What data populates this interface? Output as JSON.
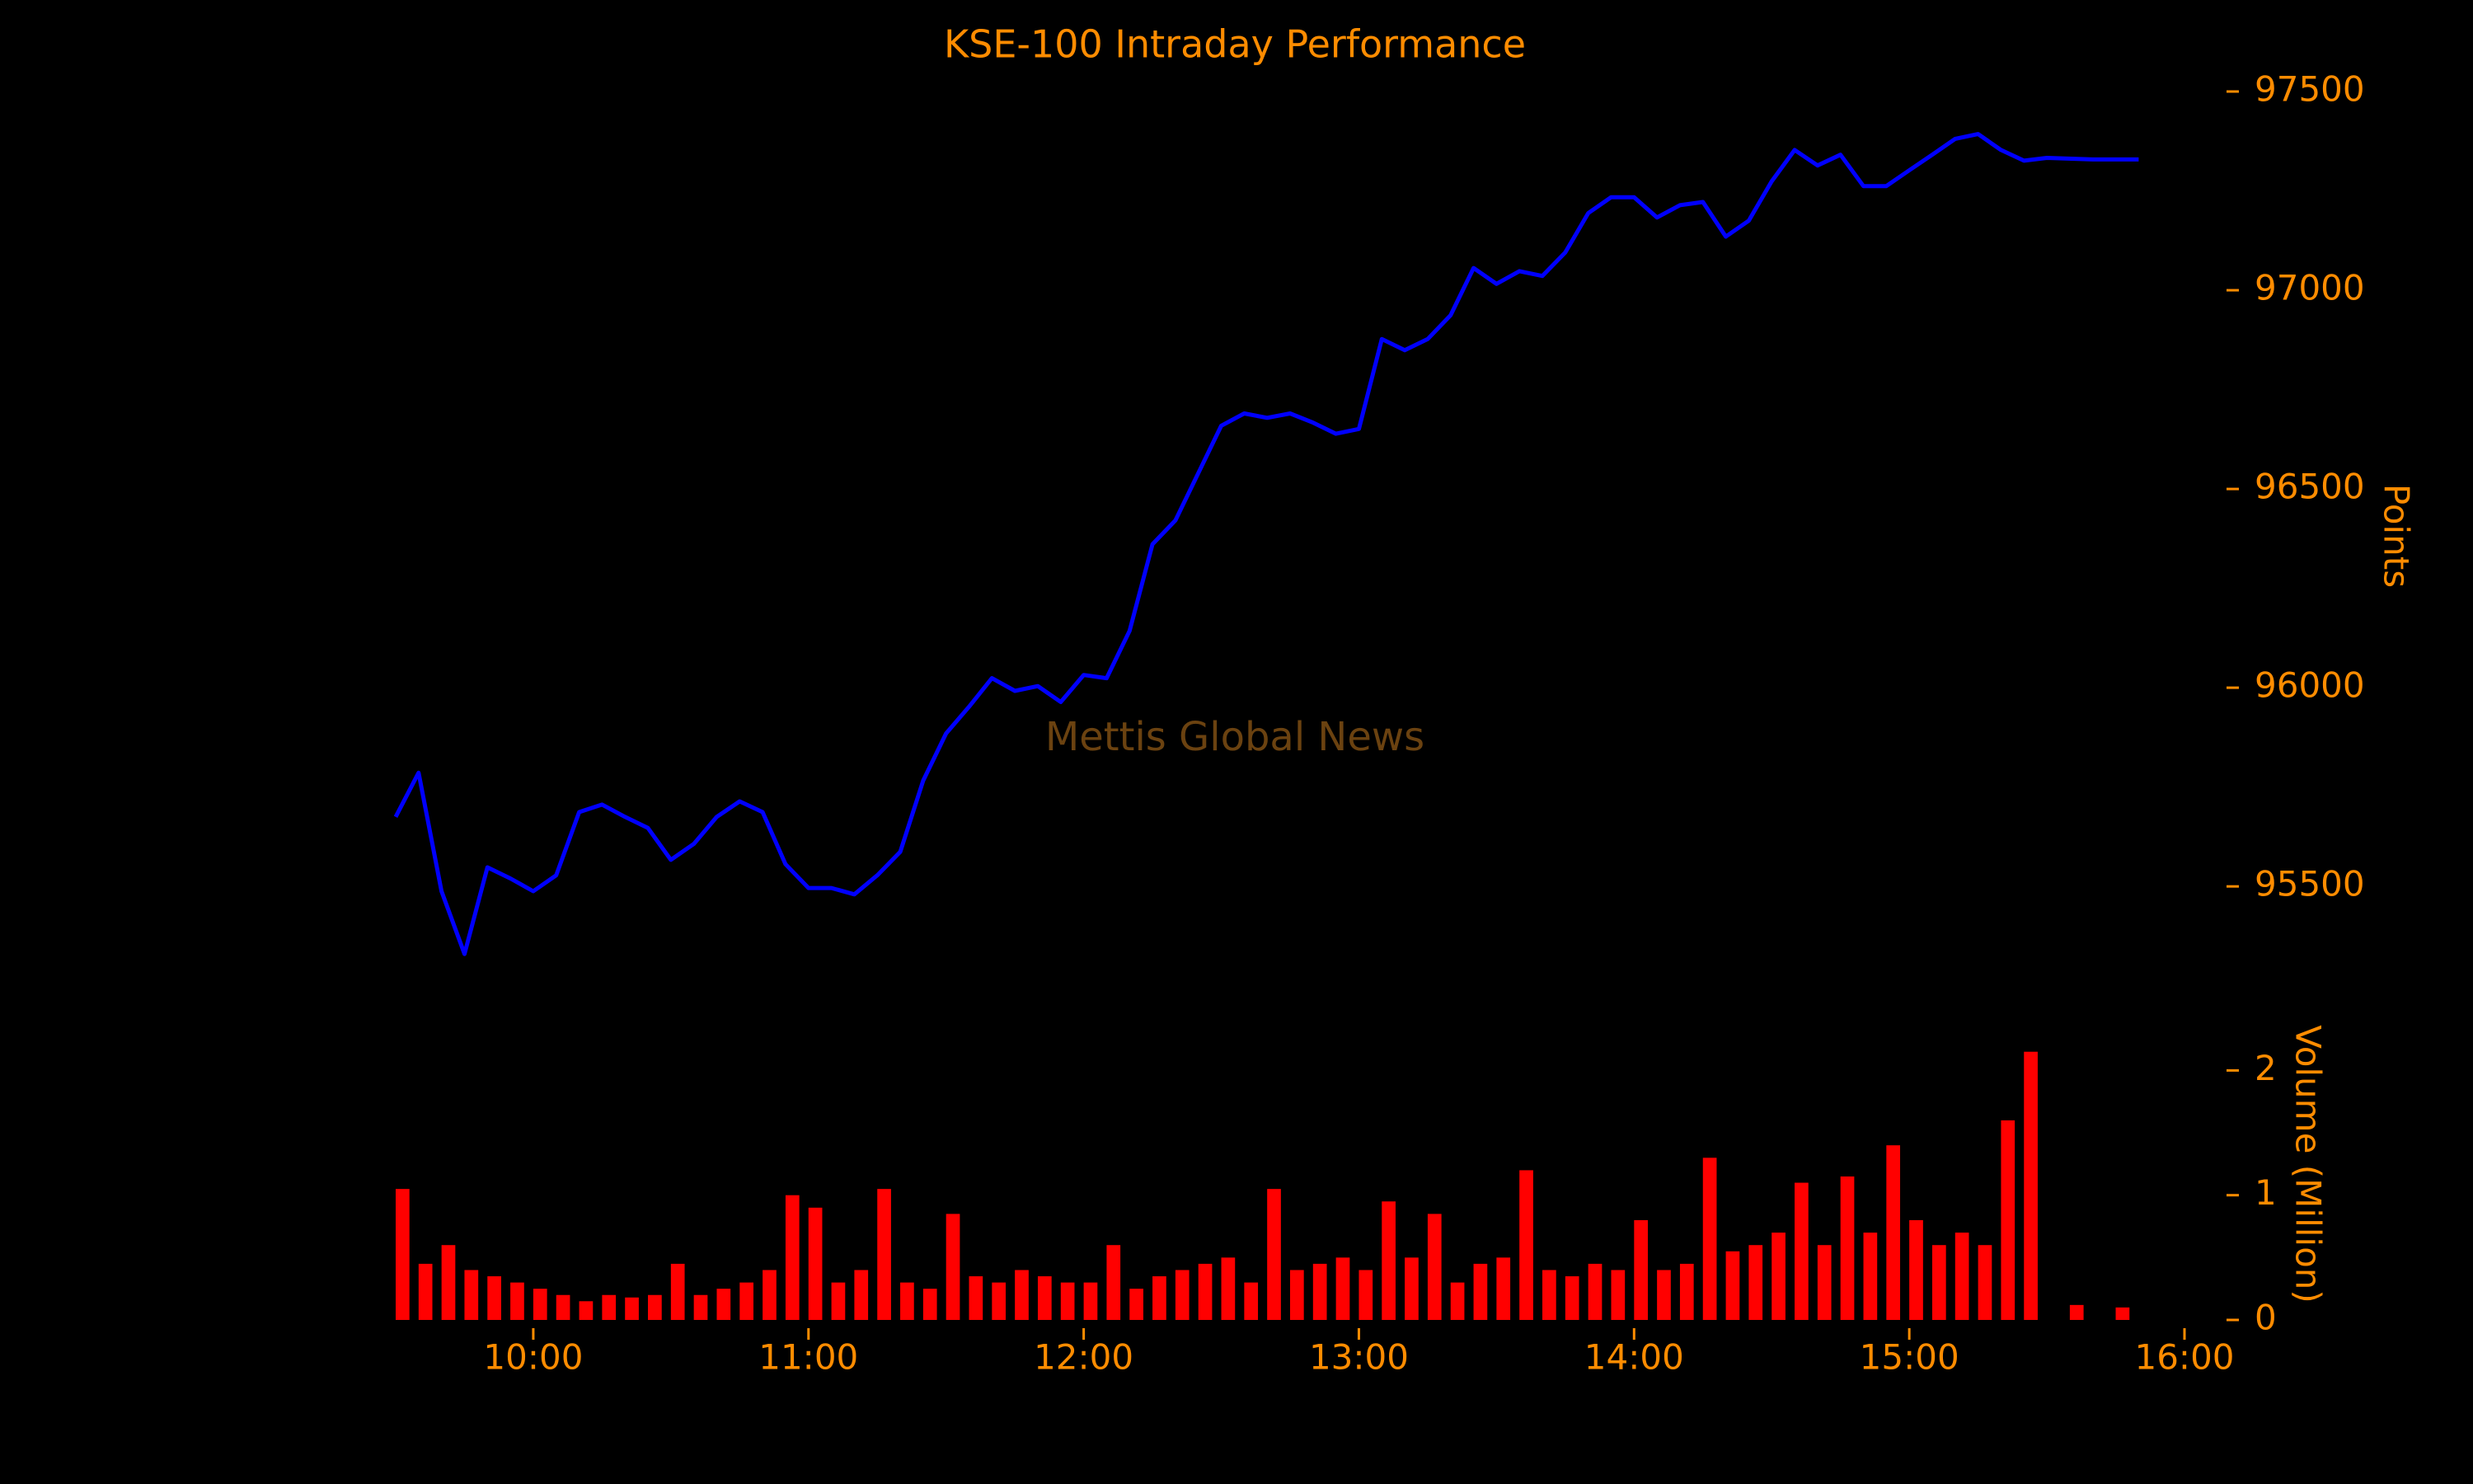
{
  "chart_data": [
    {
      "type": "line",
      "title": "KSE-100 Intraday Performance",
      "annotations": [
        "Mettis Global News"
      ],
      "ylabel": "Points",
      "color": "#0000ff",
      "x": [
        "09:30",
        "09:35",
        "09:40",
        "09:45",
        "09:50",
        "09:55",
        "10:00",
        "10:05",
        "10:10",
        "10:15",
        "10:20",
        "10:25",
        "10:30",
        "10:35",
        "10:40",
        "10:45",
        "10:50",
        "10:55",
        "11:00",
        "11:05",
        "11:10",
        "11:15",
        "11:20",
        "11:25",
        "11:30",
        "11:35",
        "11:40",
        "11:45",
        "11:50",
        "11:55",
        "12:00",
        "12:05",
        "12:10",
        "12:15",
        "12:20",
        "12:25",
        "12:30",
        "12:35",
        "12:40",
        "12:45",
        "12:50",
        "12:55",
        "13:00",
        "13:05",
        "13:10",
        "13:15",
        "13:20",
        "13:25",
        "13:30",
        "13:35",
        "13:40",
        "13:45",
        "13:50",
        "13:55",
        "14:00",
        "14:05",
        "14:10",
        "14:15",
        "14:20",
        "14:25",
        "14:30",
        "14:35",
        "14:40",
        "14:45",
        "14:50",
        "14:55",
        "15:00",
        "15:05",
        "15:10",
        "15:15",
        "15:20",
        "15:25",
        "15:30",
        "15:40",
        "15:50"
      ],
      "values": [
        95675,
        95786,
        95488,
        95330,
        95548,
        95520,
        95488,
        95528,
        95687,
        95706,
        95675,
        95647,
        95567,
        95607,
        95675,
        95714,
        95687,
        95556,
        95496,
        95496,
        95480,
        95528,
        95587,
        95766,
        95885,
        95952,
        96024,
        95992,
        96004,
        95964,
        96032,
        96024,
        96143,
        96361,
        96421,
        96540,
        96659,
        96690,
        96679,
        96690,
        96667,
        96639,
        96651,
        96877,
        96849,
        96877,
        96937,
        97056,
        97016,
        97048,
        97036,
        97095,
        97194,
        97234,
        97234,
        97183,
        97214,
        97222,
        97135,
        97175,
        97274,
        97353,
        97314,
        97341,
        97262,
        97262,
        97302,
        97341,
        97381,
        97393,
        97353,
        97326,
        97333,
        97329,
        97329
      ],
      "xlim": [
        "09:30",
        "16:00"
      ],
      "ylim": [
        95200,
        97600
      ],
      "yticks": [
        95500,
        96000,
        96500,
        97000,
        97500
      ]
    },
    {
      "type": "bar",
      "ylabel": "Volume (Million)",
      "color": "#ff0000",
      "x": [
        "09:30",
        "09:35",
        "09:40",
        "09:45",
        "09:50",
        "09:55",
        "10:00",
        "10:05",
        "10:10",
        "10:15",
        "10:20",
        "10:25",
        "10:30",
        "10:35",
        "10:40",
        "10:45",
        "10:50",
        "10:55",
        "11:00",
        "11:05",
        "11:10",
        "11:15",
        "11:20",
        "11:25",
        "11:30",
        "11:35",
        "11:40",
        "11:45",
        "11:50",
        "11:55",
        "12:00",
        "12:05",
        "12:10",
        "12:15",
        "12:20",
        "12:25",
        "12:30",
        "12:35",
        "12:40",
        "12:45",
        "12:50",
        "12:55",
        "13:00",
        "13:05",
        "13:10",
        "13:15",
        "13:20",
        "13:25",
        "13:30",
        "13:35",
        "13:40",
        "13:45",
        "13:50",
        "13:55",
        "14:00",
        "14:05",
        "14:10",
        "14:15",
        "14:20",
        "14:25",
        "14:30",
        "14:35",
        "14:40",
        "14:45",
        "14:50",
        "14:55",
        "15:00",
        "15:05",
        "15:10",
        "15:15",
        "15:20",
        "15:25",
        "15:35",
        "15:45"
      ],
      "values": [
        1.05,
        0.45,
        0.6,
        0.4,
        0.35,
        0.3,
        0.25,
        0.2,
        0.15,
        0.2,
        0.18,
        0.2,
        0.45,
        0.2,
        0.25,
        0.3,
        0.4,
        1.0,
        0.9,
        0.3,
        0.4,
        1.05,
        0.3,
        0.25,
        0.85,
        0.35,
        0.3,
        0.4,
        0.35,
        0.3,
        0.3,
        0.6,
        0.25,
        0.35,
        0.4,
        0.45,
        0.5,
        0.3,
        1.05,
        0.4,
        0.45,
        0.5,
        0.4,
        0.95,
        0.5,
        0.85,
        0.3,
        0.45,
        0.5,
        1.2,
        0.4,
        0.35,
        0.45,
        0.4,
        0.8,
        0.4,
        0.45,
        1.3,
        0.55,
        0.6,
        0.7,
        1.1,
        0.6,
        1.15,
        0.7,
        1.4,
        0.8,
        0.6,
        0.7,
        0.6,
        1.6,
        2.15,
        0.12,
        0.1
      ],
      "xlim": [
        "09:30",
        "16:00"
      ],
      "ylim": [
        0,
        2.3
      ],
      "yticks": [
        0,
        1,
        2
      ],
      "xticks": [
        "10:00",
        "11:00",
        "12:00",
        "13:00",
        "14:00",
        "15:00",
        "16:00"
      ]
    }
  ]
}
